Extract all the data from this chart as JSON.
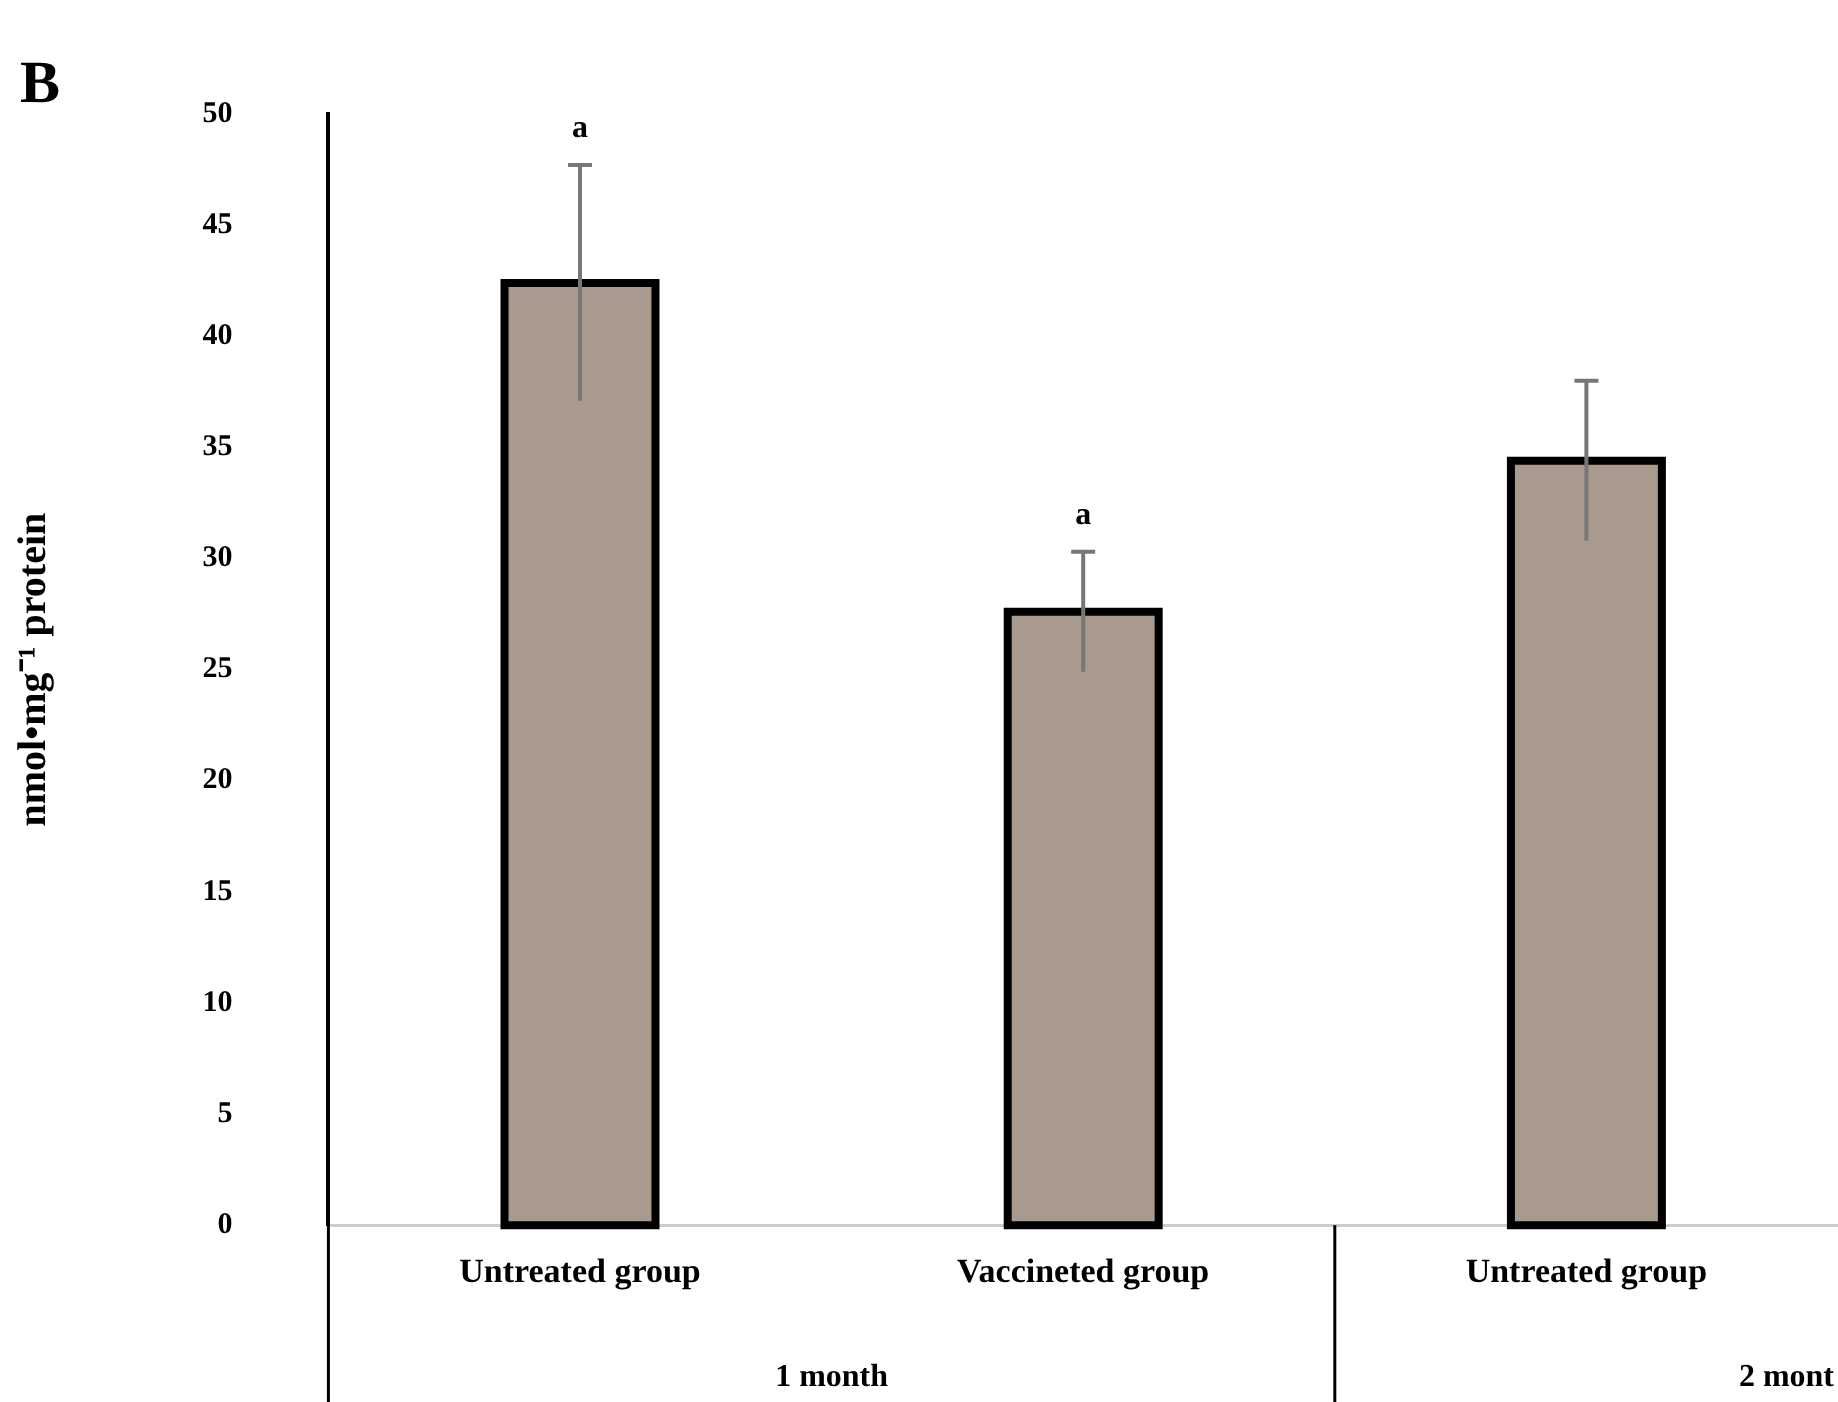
{
  "chart_data": {
    "type": "bar",
    "title": "B",
    "ylabel": "nmol•mg⁻¹ protein",
    "categories": [
      "Untreated group",
      "Vaccineted group",
      "Untreated group"
    ],
    "values": [
      42.4,
      27.6,
      34.4
    ],
    "color": "#a89a8c",
    "errors": [
      5.3,
      2.7,
      3.6
    ],
    "ylim": [
      0,
      50
    ],
    "yticks": [
      0,
      5,
      10,
      15,
      20,
      25,
      30,
      35,
      40,
      45,
      50
    ],
    "grid": false,
    "legend": false,
    "annotations": [
      {
        "text": "a",
        "x": "Untreated group",
        "y": 47.7
      },
      {
        "text": "a",
        "x": "Vaccineted group",
        "y": 30.3
      },
      "1 month",
      "2 mont"
    ]
  }
}
